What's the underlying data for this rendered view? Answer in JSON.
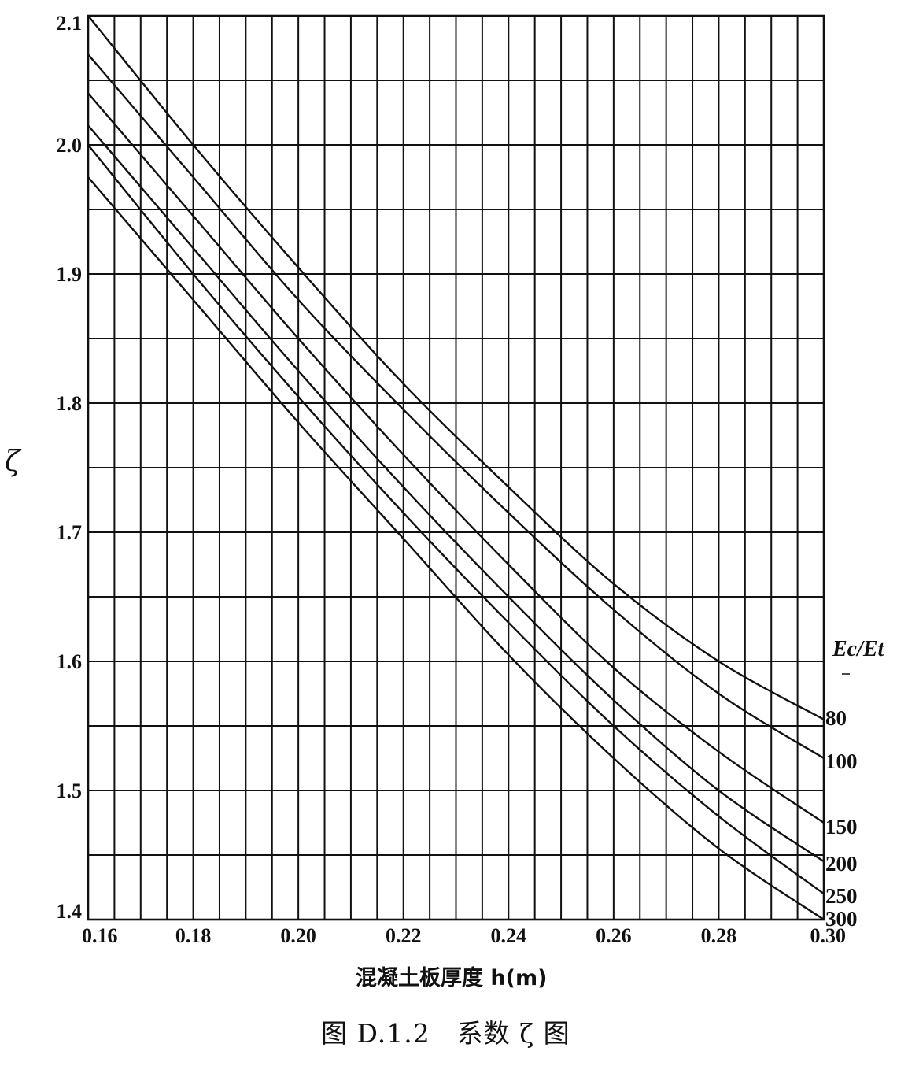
{
  "chart_data": {
    "type": "line",
    "title": "图 D.1.2　系数 ζ 图",
    "xlabel": "混凝土板厚度 h(m)",
    "ylabel": "ζ",
    "xlim": [
      0.16,
      0.3
    ],
    "ylim": [
      1.4,
      2.1
    ],
    "x_ticks": [
      0.16,
      0.18,
      0.2,
      0.22,
      0.24,
      0.26,
      0.28,
      0.3
    ],
    "x_tick_labels": [
      "0.16",
      "0.18",
      "0.20",
      "0.22",
      "0.24",
      "0.26",
      "0.28",
      "0.30"
    ],
    "y_ticks": [
      1.4,
      1.5,
      1.6,
      1.7,
      1.8,
      1.9,
      2.0,
      2.1
    ],
    "y_tick_labels": [
      "1.4",
      "1.5",
      "1.6",
      "1.7",
      "1.8",
      "1.9",
      "2.0",
      "2.1"
    ],
    "x_grid_step": 0.005,
    "y_grid_step": 0.05,
    "grid": true,
    "legend_title": "Ec/Et",
    "legend_placement": "right",
    "series": [
      {
        "name": "80",
        "x": [
          0.16,
          0.18,
          0.2,
          0.22,
          0.24,
          0.26,
          0.28,
          0.3
        ],
        "values": [
          2.1,
          2.0,
          1.905,
          1.815,
          1.735,
          1.66,
          1.6,
          1.555
        ]
      },
      {
        "name": "100",
        "x": [
          0.16,
          0.18,
          0.2,
          0.22,
          0.24,
          0.26,
          0.28,
          0.3
        ],
        "values": [
          2.07,
          1.975,
          1.88,
          1.795,
          1.715,
          1.64,
          1.575,
          1.525
        ]
      },
      {
        "name": "150",
        "x": [
          0.16,
          0.18,
          0.2,
          0.22,
          0.24,
          0.26,
          0.28,
          0.3
        ],
        "values": [
          2.04,
          1.945,
          1.85,
          1.76,
          1.675,
          1.595,
          1.53,
          1.475
        ]
      },
      {
        "name": "200",
        "x": [
          0.16,
          0.18,
          0.2,
          0.22,
          0.24,
          0.26,
          0.28,
          0.3
        ],
        "values": [
          2.015,
          1.92,
          1.825,
          1.735,
          1.65,
          1.57,
          1.5,
          1.445
        ]
      },
      {
        "name": "250",
        "x": [
          0.16,
          0.18,
          0.2,
          0.22,
          0.24,
          0.26,
          0.28,
          0.3
        ],
        "values": [
          2.0,
          1.9,
          1.805,
          1.715,
          1.63,
          1.55,
          1.48,
          1.42
        ]
      },
      {
        "name": "300",
        "x": [
          0.16,
          0.18,
          0.2,
          0.22,
          0.24,
          0.26,
          0.28,
          0.3
        ],
        "values": [
          1.975,
          1.88,
          1.785,
          1.695,
          1.605,
          1.525,
          1.455,
          1.4
        ]
      }
    ],
    "line_color": "#111111"
  }
}
